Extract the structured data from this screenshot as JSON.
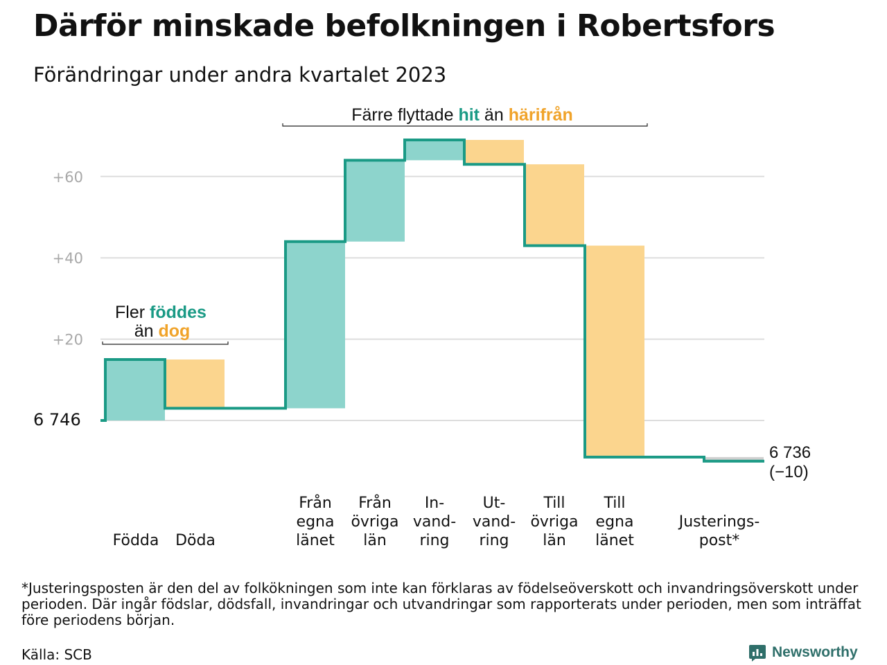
{
  "title": "Därför minskade befolkningen i Robertsfors",
  "subtitle": "Förändringar under andra kvartalet 2023",
  "colors": {
    "positive_fill": "#8dd4cc",
    "negative_fill": "#fbd58e",
    "line": "#1a9a85",
    "teal_text": "#1a9a85",
    "orange_text": "#f0a32a",
    "adjustment_fill": "#cfcfcf",
    "grid": "#dddddd",
    "tick_text": "#a8a8a8"
  },
  "annotations": {
    "births": {
      "pre": "Fler",
      "teal": "föddes",
      "mid": "än",
      "orange": "dog"
    },
    "moves": {
      "pre": "Färre flyttade",
      "teal": "hit",
      "mid": "än",
      "orange": "härifrån"
    }
  },
  "chart_data": {
    "type": "waterfall",
    "start_label": "6  746",
    "start_value": 6746,
    "end_label": "6 736",
    "end_change_label": "(−10)",
    "end_value": 6736,
    "ytick_labels": [
      "+20",
      "+40",
      "+60"
    ],
    "yticks": [
      20,
      40,
      60
    ],
    "ylim": [
      -12,
      70
    ],
    "grid": true,
    "steps": [
      {
        "label": [
          "Födda"
        ],
        "change": 15,
        "gap_before": false
      },
      {
        "label": [
          "Döda"
        ],
        "change": -12,
        "gap_before": false
      },
      {
        "label": [
          "Från",
          "egna",
          "länet"
        ],
        "change": 41,
        "gap_before": true
      },
      {
        "label": [
          "Från",
          "övriga",
          "län"
        ],
        "change": 20,
        "gap_before": false
      },
      {
        "label": [
          "In-",
          "vand-",
          "ring"
        ],
        "change": 5,
        "gap_before": false
      },
      {
        "label": [
          "Ut-",
          "vand-",
          "ring"
        ],
        "change": -6,
        "gap_before": false
      },
      {
        "label": [
          "Till",
          "övriga",
          "län"
        ],
        "change": -20,
        "gap_before": false
      },
      {
        "label": [
          "Till",
          "egna",
          "länet"
        ],
        "change": -52,
        "gap_before": false
      },
      {
        "label": [
          "Justerings-",
          "post*"
        ],
        "change": -1,
        "gap_before": true
      }
    ]
  },
  "footnote": "*Justeringsposten är den del av folkökningen som inte kan förklaras av födelseöverskott och invandringsöverskott under perioden. Där ingår födslar, dödsfall, invandringar och utvandringar som rapporterats under perioden, men som inträffat före periodens början.",
  "source": "Källa: SCB",
  "brand": {
    "name": "Newsworthy",
    "icon": "newsworthy-logo-icon"
  }
}
